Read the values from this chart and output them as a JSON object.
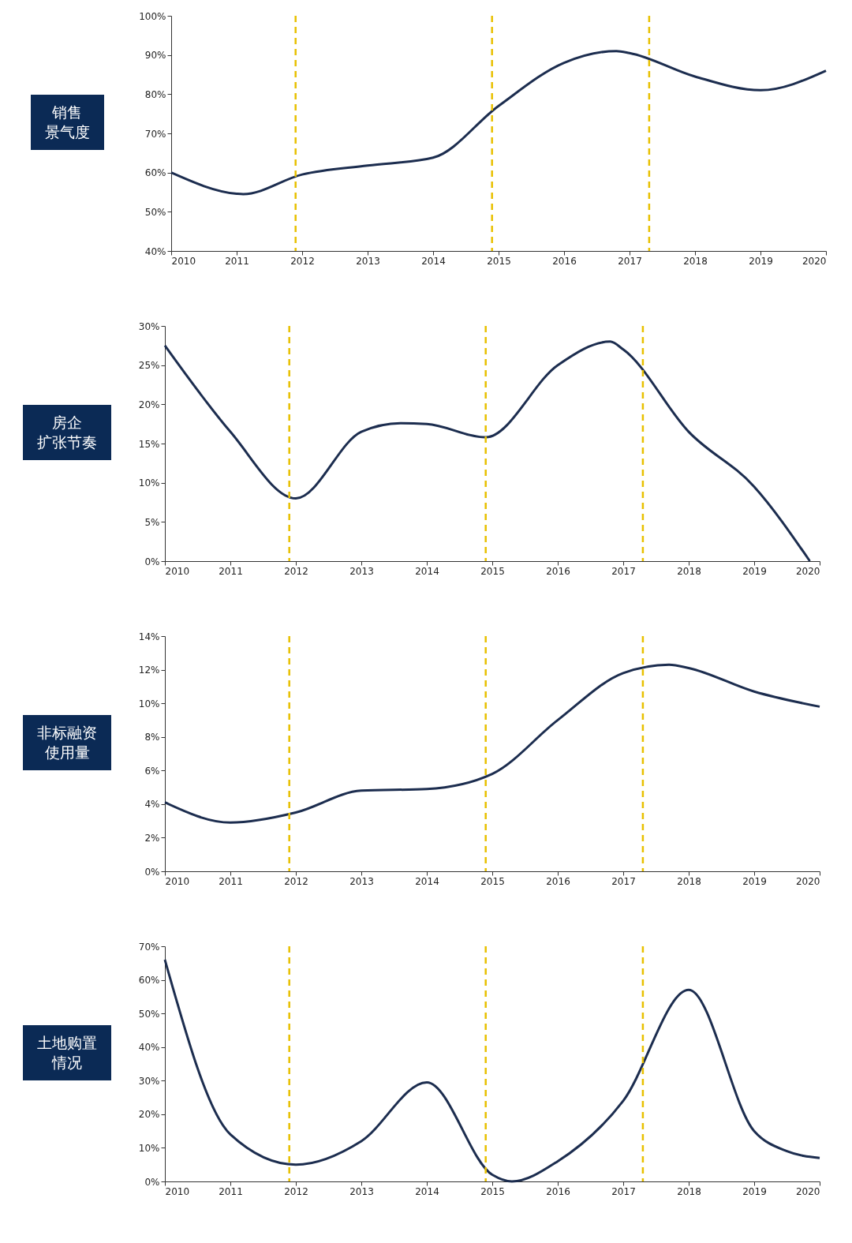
{
  "chart_data": [
    {
      "type": "line",
      "ylabel": "销售景气度",
      "x": [
        2010,
        2011,
        2011.1,
        2012,
        2013,
        2014,
        2015,
        2016,
        2016.8,
        2017,
        2018,
        2019,
        2020
      ],
      "series": [
        {
          "color": "#1c2d4f",
          "values": [
            60,
            54.6,
            54.5,
            59.5,
            61.8,
            63.8,
            77,
            88,
            91,
            90.5,
            84.5,
            81,
            86
          ]
        }
      ],
      "xlim": [
        2010,
        2020
      ],
      "xticks": [
        2010,
        2011,
        2012,
        2013,
        2014,
        2015,
        2016,
        2017,
        2018,
        2019,
        2020
      ],
      "ylim": [
        40,
        100
      ],
      "yticks": [
        {
          "value": 40,
          "label": "40%"
        },
        {
          "value": 50,
          "label": "50%"
        },
        {
          "value": 60,
          "label": "60%"
        },
        {
          "value": 70,
          "label": "70%"
        },
        {
          "value": 80,
          "label": "80%"
        },
        {
          "value": 90,
          "label": "90%"
        },
        {
          "value": 100,
          "label": "100%"
        }
      ],
      "ref_lines": [
        {
          "axis": "x",
          "value": 2011.9,
          "color": "#e8c000",
          "line_style": "dashed"
        },
        {
          "axis": "x",
          "value": 2014.9,
          "color": "#e8c000",
          "line_style": "dashed"
        },
        {
          "axis": "x",
          "value": 2017.3,
          "color": "#e8c000",
          "line_style": "dashed"
        }
      ],
      "grid": false,
      "line_style": "solid"
    },
    {
      "type": "line",
      "ylabel": "房企扩张节奏",
      "x": [
        2010,
        2011,
        2012,
        2013,
        2013.6,
        2014,
        2014.9,
        2016,
        2016.8,
        2017,
        2018,
        2019,
        2019.85
      ],
      "series": [
        {
          "color": "#1c2d4f",
          "values": [
            27.5,
            16.5,
            8,
            16.5,
            17.6,
            17.5,
            15.8,
            25,
            28,
            27,
            16.5,
            9.5,
            0
          ]
        }
      ],
      "xlim": [
        2010,
        2020
      ],
      "xticks": [
        2010,
        2011,
        2012,
        2013,
        2014,
        2015,
        2016,
        2017,
        2018,
        2019,
        2020
      ],
      "ylim": [
        0,
        30
      ],
      "yticks": [
        {
          "value": 0,
          "label": "0%"
        },
        {
          "value": 5,
          "label": "5%"
        },
        {
          "value": 10,
          "label": "10%"
        },
        {
          "value": 15,
          "label": "15%"
        },
        {
          "value": 20,
          "label": "20%"
        },
        {
          "value": 25,
          "label": "25%"
        },
        {
          "value": 30,
          "label": "30%"
        }
      ],
      "ref_lines": [
        {
          "axis": "x",
          "value": 2011.9,
          "color": "#e8c000",
          "line_style": "dashed"
        },
        {
          "axis": "x",
          "value": 2014.9,
          "color": "#e8c000",
          "line_style": "dashed"
        },
        {
          "axis": "x",
          "value": 2017.3,
          "color": "#e8c000",
          "line_style": "dashed"
        }
      ],
      "grid": false,
      "line_style": "solid"
    },
    {
      "type": "line",
      "ylabel": "非标融资使用量",
      "x": [
        2010,
        2011,
        2012,
        2013,
        2014,
        2015,
        2016,
        2017,
        2017.7,
        2018,
        2019,
        2020
      ],
      "series": [
        {
          "color": "#1c2d4f",
          "values": [
            4.1,
            2.9,
            3.5,
            4.8,
            4.9,
            5.8,
            9,
            11.8,
            12.3,
            12.1,
            10.7,
            9.8
          ]
        }
      ],
      "xlim": [
        2010,
        2020
      ],
      "xticks": [
        2010,
        2011,
        2012,
        2013,
        2014,
        2015,
        2016,
        2017,
        2018,
        2019,
        2020
      ],
      "ylim": [
        0,
        14
      ],
      "yticks": [
        {
          "value": 0,
          "label": "0%"
        },
        {
          "value": 2,
          "label": "2%"
        },
        {
          "value": 4,
          "label": "4%"
        },
        {
          "value": 6,
          "label": "6%"
        },
        {
          "value": 8,
          "label": "8%"
        },
        {
          "value": 10,
          "label": "10%"
        },
        {
          "value": 12,
          "label": "12%"
        },
        {
          "value": 14,
          "label": "14%"
        }
      ],
      "ref_lines": [
        {
          "axis": "x",
          "value": 2011.9,
          "color": "#e8c000",
          "line_style": "dashed"
        },
        {
          "axis": "x",
          "value": 2014.9,
          "color": "#e8c000",
          "line_style": "dashed"
        },
        {
          "axis": "x",
          "value": 2017.3,
          "color": "#e8c000",
          "line_style": "dashed"
        }
      ],
      "grid": false,
      "line_style": "solid"
    },
    {
      "type": "line",
      "ylabel": "土地购置情况",
      "x": [
        2010,
        2011,
        2012,
        2013,
        2014,
        2015,
        2015.3,
        2016,
        2017,
        2018,
        2019,
        2019.5,
        2020
      ],
      "series": [
        {
          "color": "#1c2d4f",
          "values": [
            66,
            14,
            5,
            12,
            29.5,
            2,
            0,
            6,
            24,
            57,
            15,
            9,
            7
          ]
        }
      ],
      "xlim": [
        2010,
        2020
      ],
      "xticks": [
        2010,
        2011,
        2012,
        2013,
        2014,
        2015,
        2016,
        2017,
        2018,
        2019,
        2020
      ],
      "ylim": [
        0,
        70
      ],
      "yticks": [
        {
          "value": 0,
          "label": "0%"
        },
        {
          "value": 10,
          "label": "10%"
        },
        {
          "value": 20,
          "label": "20%"
        },
        {
          "value": 30,
          "label": "30%"
        },
        {
          "value": 40,
          "label": "40%"
        },
        {
          "value": 50,
          "label": "50%"
        },
        {
          "value": 60,
          "label": "60%"
        },
        {
          "value": 70,
          "label": "70%"
        }
      ],
      "ref_lines": [
        {
          "axis": "x",
          "value": 2011.9,
          "color": "#e8c000",
          "line_style": "dashed"
        },
        {
          "axis": "x",
          "value": 2014.9,
          "color": "#e8c000",
          "line_style": "dashed"
        },
        {
          "axis": "x",
          "value": 2017.3,
          "color": "#e8c000",
          "line_style": "dashed"
        }
      ],
      "grid": false,
      "line_style": "solid"
    }
  ]
}
